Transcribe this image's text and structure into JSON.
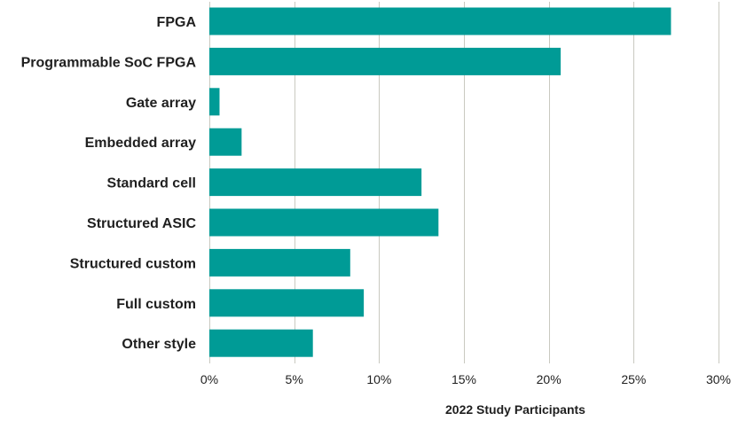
{
  "chart_data": {
    "type": "bar",
    "orientation": "horizontal",
    "categories": [
      "FPGA",
      "Programmable SoC FPGA",
      "Gate array",
      "Embedded array",
      "Standard cell",
      "Structured ASIC",
      "Structured custom",
      "Full custom",
      "Other style"
    ],
    "values": [
      27.2,
      20.7,
      0.6,
      1.9,
      12.5,
      13.5,
      8.3,
      9.1,
      6.1
    ],
    "title": "",
    "xlabel": "2022 Study Participants",
    "ylabel": "",
    "xlim": [
      0,
      30
    ],
    "x_ticks": [
      0,
      5,
      10,
      15,
      20,
      25,
      30
    ],
    "x_tick_labels": [
      "0%",
      "5%",
      "10%",
      "15%",
      "20%",
      "25%",
      "30%"
    ],
    "grid": "vertical",
    "legend": "none",
    "bar_color": "#009b96"
  }
}
